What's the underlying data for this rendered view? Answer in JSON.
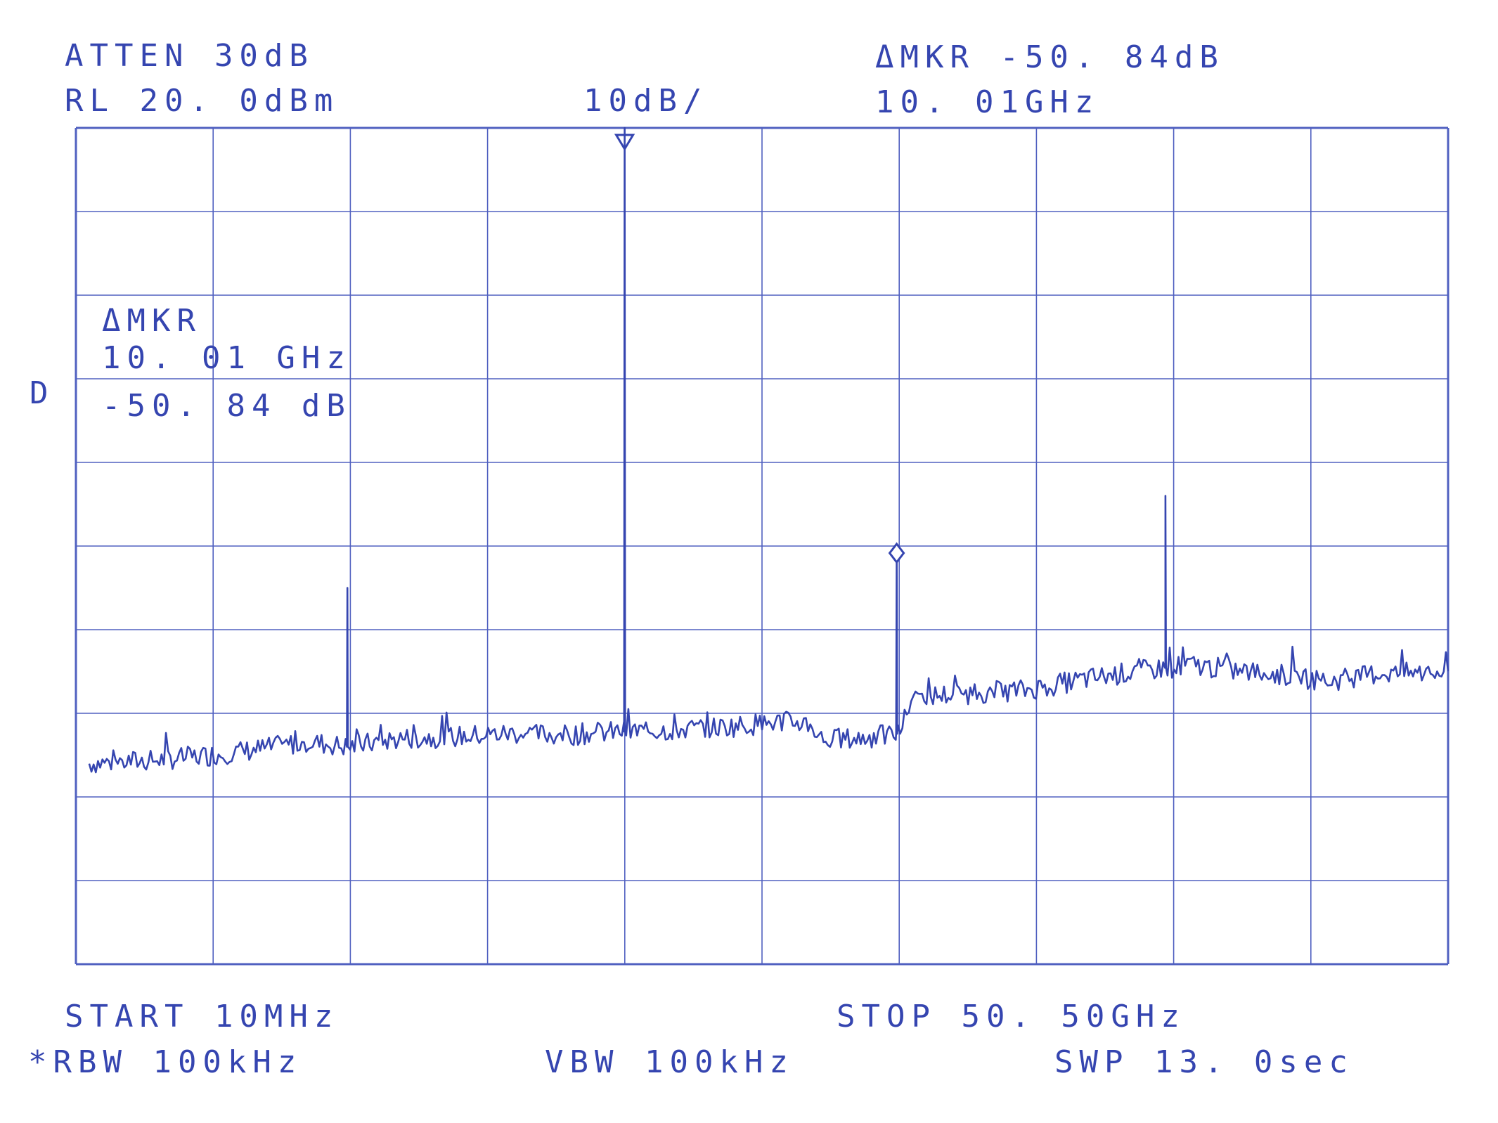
{
  "header": {
    "atten": "ATTEN  30dB",
    "ref_level": "RL  20. 0dBm",
    "scale": "10dB/",
    "delta_marker_value": "ΔMKR  -50. 84dB",
    "delta_marker_freq": "10. 01GHz"
  },
  "marker_box": {
    "title": "ΔMKR",
    "freq": "10. 01  GHz",
    "value": "-50. 84  dB"
  },
  "side_label": "D",
  "footer": {
    "start": "START  10MHz",
    "stop": "STOP  50. 50GHz",
    "rbw": "*RBW  100kHz",
    "vbw": "VBW  100kHz",
    "swp": "SWP  13. 0sec"
  },
  "colors": {
    "ink": "#3545b0",
    "grid": "#5060c0",
    "background": "#ffffff"
  },
  "chart_data": {
    "type": "line",
    "title": "",
    "xlabel": "",
    "ylabel": "",
    "x_unit": "GHz",
    "y_unit": "dBm",
    "xlim": [
      0.01,
      50.5
    ],
    "ylim": [
      -80,
      20
    ],
    "grid": true,
    "grid_divisions": {
      "x": 10,
      "y": 10
    },
    "reference_marker": {
      "x": 20.2,
      "y": 20,
      "symbol": "triangle-down"
    },
    "delta_marker": {
      "x": 30.21,
      "y": -30.84,
      "symbol": "diamond"
    },
    "noise_floor": [
      [
        0.5,
        -56.0
      ],
      [
        3,
        -55.6
      ],
      [
        5,
        -55.0
      ],
      [
        7,
        -54.2
      ],
      [
        8.5,
        -53.4
      ],
      [
        10,
        -54.0
      ],
      [
        12,
        -53.0
      ],
      [
        14,
        -52.8
      ],
      [
        16,
        -52.4
      ],
      [
        18,
        -52.6
      ],
      [
        20,
        -52.2
      ],
      [
        22,
        -52.0
      ],
      [
        24,
        -51.6
      ],
      [
        26,
        -51.0
      ],
      [
        27,
        -51.2
      ],
      [
        27.5,
        -53.2
      ],
      [
        29,
        -53.0
      ],
      [
        30.3,
        -52.4
      ],
      [
        30.8,
        -48.0
      ],
      [
        33,
        -47.6
      ],
      [
        35,
        -47.2
      ],
      [
        37,
        -46.0
      ],
      [
        39,
        -45.0
      ],
      [
        41,
        -44.2
      ],
      [
        43,
        -45.0
      ],
      [
        45,
        -45.6
      ],
      [
        46,
        -46.2
      ],
      [
        48,
        -45.2
      ],
      [
        50.5,
        -45.2
      ]
    ],
    "spikes": [
      {
        "x": 10.0,
        "y": -35.0
      },
      {
        "x": 20.2,
        "y": 20.0
      },
      {
        "x": 30.21,
        "y": -30.84
      },
      {
        "x": 40.1,
        "y": -24.0
      }
    ]
  }
}
